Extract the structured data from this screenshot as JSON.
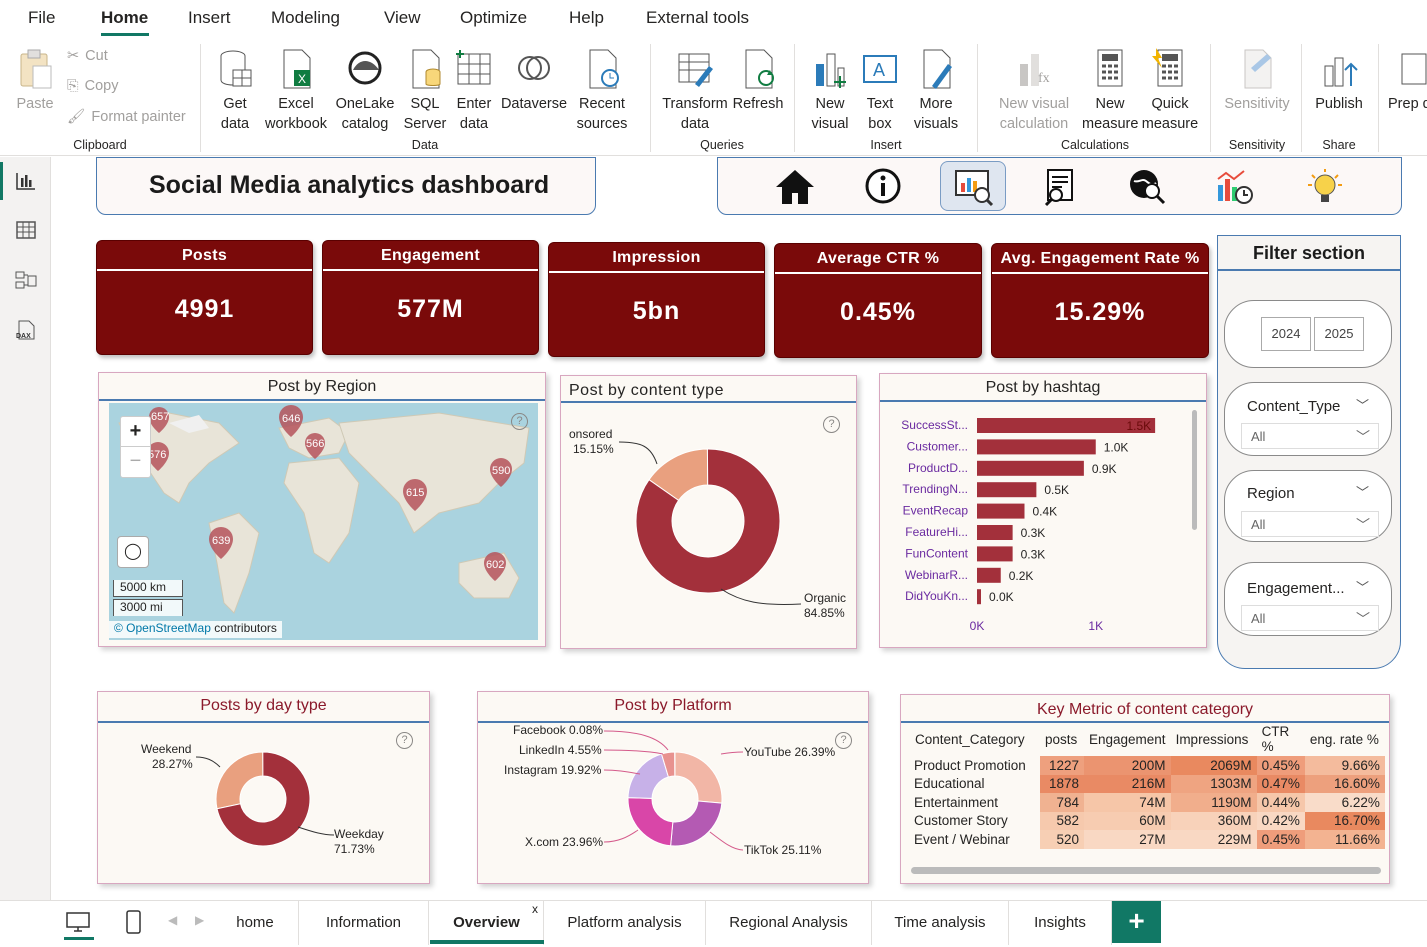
{
  "menu": {
    "items": [
      "File",
      "Home",
      "Insert",
      "Modeling",
      "View",
      "Optimize",
      "Help",
      "External tools"
    ],
    "active": "Home"
  },
  "ribbon": {
    "clipboard": {
      "paste": "Paste",
      "cut": "Cut",
      "copy": "Copy",
      "format_painter": "Format painter",
      "label": "Clipboard"
    },
    "data": {
      "get_data": "Get data",
      "excel": "Excel workbook",
      "onelake": "OneLake catalog",
      "sql": "SQL Server",
      "enter": "Enter data",
      "dataverse": "Dataverse",
      "recent": "Recent sources",
      "label": "Data"
    },
    "queries": {
      "transform": "Transform data",
      "refresh": "Refresh",
      "label": "Queries"
    },
    "insert": {
      "new_visual": "New visual",
      "text_box": "Text box",
      "more_visuals": "More visuals",
      "label": "Insert"
    },
    "calculations": {
      "new_visual_calc": "New visual calculation",
      "new_measure": "New measure",
      "quick_measure": "Quick measure",
      "label": "Calculations"
    },
    "sensitivity": {
      "btn": "Sensitivity",
      "label": "Sensitivity"
    },
    "share": {
      "publish": "Publish",
      "label": "Share"
    },
    "prep": "Prep d"
  },
  "report_title": "Social Media analytics dashboard",
  "kpis": [
    {
      "title": "Posts",
      "value": "4991"
    },
    {
      "title": "Engagement",
      "value": "577M"
    },
    {
      "title": "Impression",
      "value": "5bn"
    },
    {
      "title": "Average CTR %",
      "value": "0.45%"
    },
    {
      "title": "Avg. Engagement Rate %",
      "value": "15.29%"
    }
  ],
  "filter": {
    "title": "Filter section",
    "years": [
      "2024",
      "2025"
    ],
    "slicers": [
      {
        "label": "Content_Type",
        "value": "All"
      },
      {
        "label": "Region",
        "value": "All"
      },
      {
        "label": "Engagement...",
        "value": "All"
      }
    ]
  },
  "map": {
    "title": "Post by Region",
    "pins": [
      "657",
      "646",
      "566",
      "576",
      "590",
      "615",
      "639",
      "602"
    ],
    "scale_km": "5000 km",
    "scale_mi": "3000 mi",
    "zoom_in": "+",
    "zoom_out": "−",
    "attribution_link": "© OpenStreetMap",
    "attribution_rest": "contributors"
  },
  "content_type": {
    "title": "Post by content type",
    "labels": {
      "sponsored": "onsored",
      "sponsored_pct": "15.15%",
      "organic": "Organic",
      "organic_pct": "84.85%"
    }
  },
  "hashtag": {
    "title": "Post by hashtag",
    "axis": [
      "0K",
      "1K"
    ]
  },
  "day_type": {
    "title": "Posts by day type",
    "labels": {
      "weekend": "Weekend",
      "weekend_pct": "28.27%",
      "weekday": "Weekday",
      "weekday_pct": "71.73%"
    }
  },
  "platform": {
    "title": "Post by Platform",
    "labels": [
      "Facebook 0.08%",
      "LinkedIn 4.55%",
      "Instagram 19.92%",
      "X.com 23.96%",
      "YouTube 26.39%",
      "TikTok 25.11%"
    ]
  },
  "key_metric": {
    "title": "Key Metric of content category",
    "headers": [
      "Content_Category",
      "posts",
      "Engagement",
      "Impressions",
      "CTR %",
      "eng. rate %"
    ],
    "rows": [
      [
        "Product Promotion",
        "1227",
        "200M",
        "2069M",
        "0.45%",
        "9.66%"
      ],
      [
        "Educational",
        "1878",
        "216M",
        "1303M",
        "0.47%",
        "16.60%"
      ],
      [
        "Entertainment",
        "784",
        "74M",
        "1190M",
        "0.44%",
        "6.22%"
      ],
      [
        "Customer Story",
        "582",
        "60M",
        "360M",
        "0.42%",
        "16.70%"
      ],
      [
        "Event / Webinar",
        "520",
        "27M",
        "229M",
        "0.45%",
        "11.66%"
      ]
    ]
  },
  "tabs": [
    "home",
    "Information",
    "Overview",
    "Platform analysis",
    "Regional Analysis",
    "Time analysis",
    "Insights"
  ],
  "active_tab": "Overview",
  "tab_close": "x",
  "add_tab": "+",
  "chart_data": [
    {
      "type": "pie",
      "title": "Post by content type",
      "categories": [
        "Sponsored",
        "Organic"
      ],
      "values": [
        15.15,
        84.85
      ],
      "colors": [
        "#e9a07f",
        "#a3303b"
      ]
    },
    {
      "type": "bar",
      "title": "Post by hashtag",
      "categories": [
        "SuccessSt...",
        "Customer...",
        "ProductD...",
        "TrendingN...",
        "EventRecap",
        "FeatureHi...",
        "FunContent",
        "WebinarR...",
        "DidYouKn..."
      ],
      "values": [
        1.5,
        1.0,
        0.9,
        0.5,
        0.4,
        0.3,
        0.3,
        0.2,
        0.0
      ],
      "value_labels": [
        "1.5K",
        "1.0K",
        "0.9K",
        "0.5K",
        "0.4K",
        "0.3K",
        "0.3K",
        "0.2K",
        "0.0K"
      ],
      "xlim": [
        0,
        1.6
      ],
      "xticks": [
        "0K",
        "1K"
      ],
      "color": "#a3303b"
    },
    {
      "type": "pie",
      "title": "Posts by day type",
      "categories": [
        "Weekend",
        "Weekday"
      ],
      "values": [
        28.27,
        71.73
      ],
      "colors": [
        "#e9a07f",
        "#a3303b"
      ]
    },
    {
      "type": "pie",
      "title": "Post by Platform",
      "categories": [
        "YouTube",
        "TikTok",
        "X.com",
        "Instagram",
        "LinkedIn",
        "Facebook"
      ],
      "values": [
        26.39,
        25.11,
        23.96,
        19.92,
        4.55,
        0.08
      ],
      "colors": [
        "#f2b6a6",
        "#b45ab3",
        "#d946a8",
        "#c7b1e8",
        "#e8928f",
        "#8b1a2b"
      ]
    }
  ],
  "colors": {
    "kpi": "#7a0a0a",
    "accent": "#117865",
    "border": "#4a7ab0",
    "bar": "#a3303b"
  }
}
